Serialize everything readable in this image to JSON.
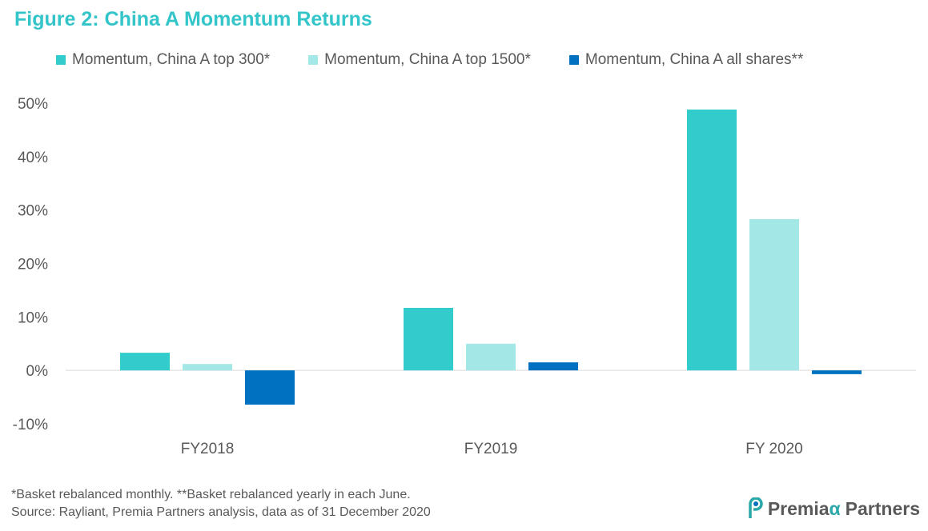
{
  "title": "Figure 2: China A Momentum Returns",
  "colors": {
    "title": "#33c5c9",
    "series": [
      "#33cccc",
      "#a3e8e6",
      "#0070c0"
    ],
    "axis": "#d9d9d9",
    "text": "#595959"
  },
  "chart_data": {
    "type": "bar",
    "categories": [
      "FY2018",
      "FY2019",
      "FY 2020"
    ],
    "series": [
      {
        "name": "Momentum, China A top 300*",
        "values": [
          3.3,
          11.7,
          48.8
        ]
      },
      {
        "name": "Momentum, China A top 1500*",
        "values": [
          1.2,
          5.0,
          28.3
        ]
      },
      {
        "name": "Momentum, China A all shares**",
        "values": [
          -6.4,
          1.5,
          -0.7
        ]
      }
    ],
    "y_ticks": [
      "50%",
      "40%",
      "30%",
      "20%",
      "10%",
      "0%",
      "-10%"
    ],
    "y_tick_values": [
      50,
      40,
      30,
      20,
      10,
      0,
      -10
    ],
    "ylim": [
      -10,
      50
    ],
    "legend_position": "top",
    "grid": false
  },
  "footnotes": {
    "line1": "*Basket rebalanced monthly. **Basket rebalanced yearly in each June.",
    "line2": "Source: Rayliant, Premia Partners analysis, data as of 31 December 2020"
  },
  "logo": {
    "text_left": "Premia",
    "text_alpha": "α",
    "text_right": "Partners",
    "icon": "premia-logo-icon"
  }
}
